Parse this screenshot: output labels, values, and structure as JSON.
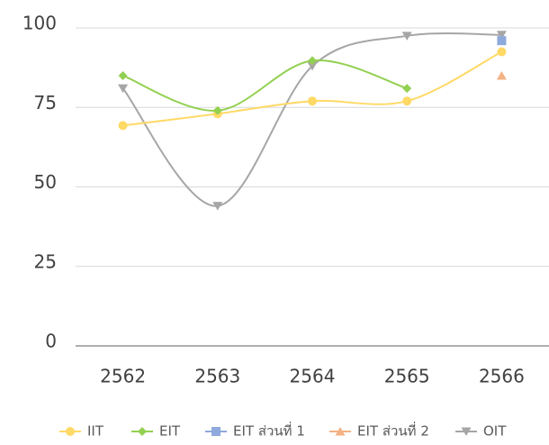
{
  "chart_data": {
    "type": "line",
    "title": "",
    "xlabel": "",
    "ylabel": "",
    "categories": [
      "2562",
      "2563",
      "2564",
      "2565",
      "2566"
    ],
    "y_ticks": [
      "0",
      "25",
      "50",
      "75",
      "100"
    ],
    "ylim": [
      0,
      100
    ],
    "grid": "horizontal",
    "legend_position": "bottom",
    "series": [
      {
        "name": "IIT",
        "values": [
          69.3,
          73.0,
          77.0,
          77.0,
          92.5
        ],
        "color": "#FFD966",
        "marker": "circle",
        "line": true
      },
      {
        "name": "EIT",
        "values": [
          85.0,
          74.0,
          89.7,
          81.0,
          null
        ],
        "color": "#92D050",
        "marker": "diamond",
        "line": true
      },
      {
        "name": "EIT ส่วนที่ 1",
        "values": [
          null,
          null,
          null,
          null,
          96.0
        ],
        "color": "#8EA9DB",
        "marker": "square",
        "line": false
      },
      {
        "name": "EIT ส่วนที่ 2",
        "values": [
          null,
          null,
          null,
          null,
          85.0
        ],
        "color": "#F4B183",
        "marker": "triangle-up",
        "line": false
      },
      {
        "name": "OIT",
        "values": [
          81.0,
          44.0,
          88.0,
          97.5,
          97.8
        ],
        "color": "#A6A6A6",
        "marker": "triangle-down",
        "line": true
      }
    ]
  }
}
